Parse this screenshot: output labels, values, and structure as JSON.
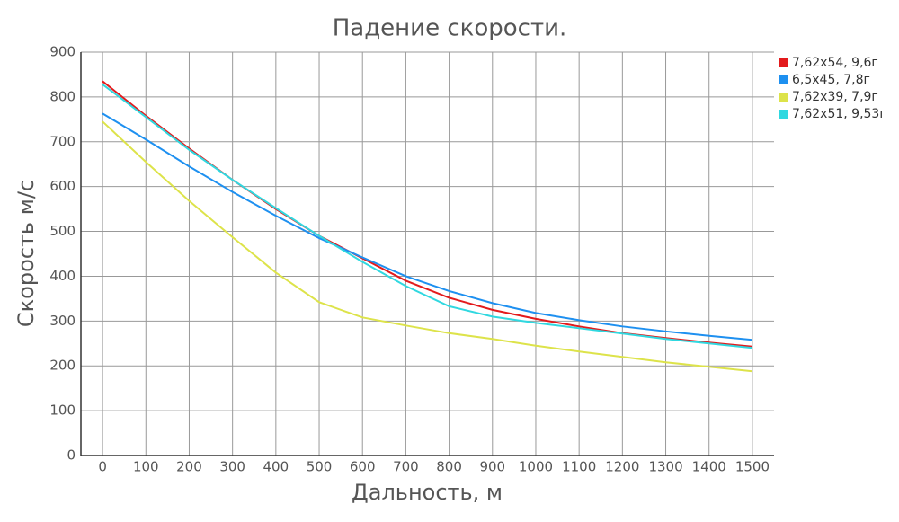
{
  "chart_data": {
    "type": "line",
    "title": "Падение скорости.",
    "x_label": "Дальность, м",
    "y_label": "Скорость м/с",
    "x": [
      0,
      100,
      200,
      300,
      400,
      500,
      600,
      700,
      800,
      900,
      1000,
      1100,
      1200,
      1300,
      1400,
      1500
    ],
    "series": [
      {
        "name": "7,62x54, 9,6г",
        "color": "#e31a1c",
        "values": [
          835,
          758,
          685,
          615,
          550,
          490,
          440,
          390,
          352,
          325,
          305,
          288,
          273,
          262,
          252,
          243
        ]
      },
      {
        "name": "6,5x45, 7,8г",
        "color": "#1e90f0",
        "values": [
          763,
          705,
          645,
          588,
          535,
          485,
          442,
          400,
          367,
          340,
          318,
          302,
          288,
          277,
          267,
          258
        ]
      },
      {
        "name": "7,62x39, 7,9г",
        "color": "#dde34a",
        "values": [
          745,
          655,
          568,
          487,
          408,
          342,
          308,
          290,
          273,
          260,
          245,
          232,
          220,
          208,
          198,
          188
        ]
      },
      {
        "name": "7,62x51, 9,53г",
        "color": "#30d8e0",
        "values": [
          828,
          755,
          682,
          615,
          552,
          490,
          432,
          378,
          333,
          310,
          296,
          284,
          272,
          260,
          250,
          240
        ]
      }
    ],
    "xlim": [
      -50,
      1550
    ],
    "ylim": [
      0,
      900
    ],
    "xticks": [
      0,
      100,
      200,
      300,
      400,
      500,
      600,
      700,
      800,
      900,
      1000,
      1100,
      1200,
      1300,
      1400,
      1500
    ],
    "yticks": [
      0,
      100,
      200,
      300,
      400,
      500,
      600,
      700,
      800,
      900
    ],
    "grid": true,
    "legend": "right"
  }
}
